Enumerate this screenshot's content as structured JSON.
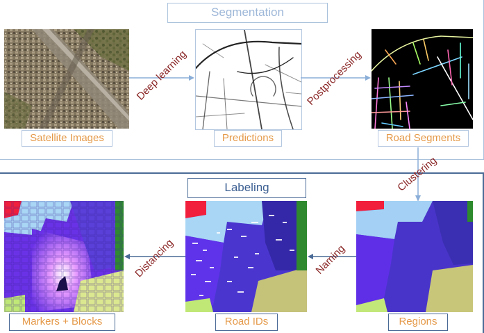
{
  "segmentation": {
    "title": "Segmentation",
    "steps": {
      "satellite": "Satellite Images",
      "deep_learning": "Deep learning",
      "predictions": "Predictions",
      "postprocessing": "Postprocessing",
      "road_segments": "Road Segments"
    }
  },
  "transition": {
    "clustering": "Clustering"
  },
  "labeling": {
    "title": "Labeling",
    "steps": {
      "regions": "Regions",
      "naming": "Naming",
      "road_ids": "Road IDs",
      "distancing": "Distancing",
      "markers_blocks": "Markers + Blocks"
    }
  },
  "colors": {
    "section_light_border": "#a9c1dc",
    "section_dark_border": "#4a6a96",
    "caption_text": "#e59a4a",
    "step_text": "#8b2727",
    "arrow": "#8aaed8"
  }
}
